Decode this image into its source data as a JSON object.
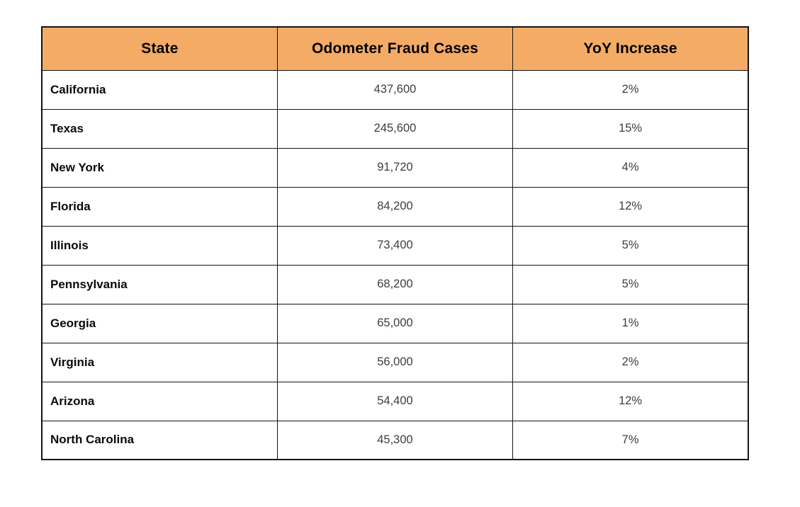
{
  "table": {
    "columns": [
      {
        "label": "State"
      },
      {
        "label": "Odometer Fraud Cases"
      },
      {
        "label": "YoY Increase"
      }
    ],
    "rows": [
      {
        "state": "California",
        "cases": "437,600",
        "yoy": "2%"
      },
      {
        "state": "Texas",
        "cases": "245,600",
        "yoy": "15%"
      },
      {
        "state": "New York",
        "cases": "91,720",
        "yoy": "4%"
      },
      {
        "state": "Florida",
        "cases": "84,200",
        "yoy": "12%"
      },
      {
        "state": "Illinois",
        "cases": "73,400",
        "yoy": "5%"
      },
      {
        "state": "Pennsylvania",
        "cases": "68,200",
        "yoy": "5%"
      },
      {
        "state": "Georgia",
        "cases": "65,000",
        "yoy": "1%"
      },
      {
        "state": "Virginia",
        "cases": "56,000",
        "yoy": "2%"
      },
      {
        "state": "Arizona",
        "cases": "54,400",
        "yoy": "12%"
      },
      {
        "state": "North Carolina",
        "cases": "45,300",
        "yoy": "7%"
      }
    ]
  },
  "chart_data": {
    "type": "table",
    "title": "",
    "columns": [
      "State",
      "Odometer Fraud Cases",
      "YoY Increase"
    ],
    "rows": [
      [
        "California",
        437600,
        "2%"
      ],
      [
        "Texas",
        245600,
        "15%"
      ],
      [
        "New York",
        91720,
        "4%"
      ],
      [
        "Florida",
        84200,
        "12%"
      ],
      [
        "Illinois",
        73400,
        "5%"
      ],
      [
        "Pennsylvania",
        68200,
        "5%"
      ],
      [
        "Georgia",
        65000,
        "1%"
      ],
      [
        "Virginia",
        56000,
        "2%"
      ],
      [
        "Arizona",
        54400,
        "12%"
      ],
      [
        "North Carolina",
        45300,
        "7%"
      ]
    ],
    "layout": {
      "header_background": "#f4ab66",
      "border_color": "#141414",
      "grid": "on"
    }
  },
  "colors": {
    "header_bg": "#f4ab66",
    "border": "#141414",
    "state_text": "#0a0a0a",
    "value_text": "#3d3d3d",
    "page_bg": "#ffffff"
  }
}
